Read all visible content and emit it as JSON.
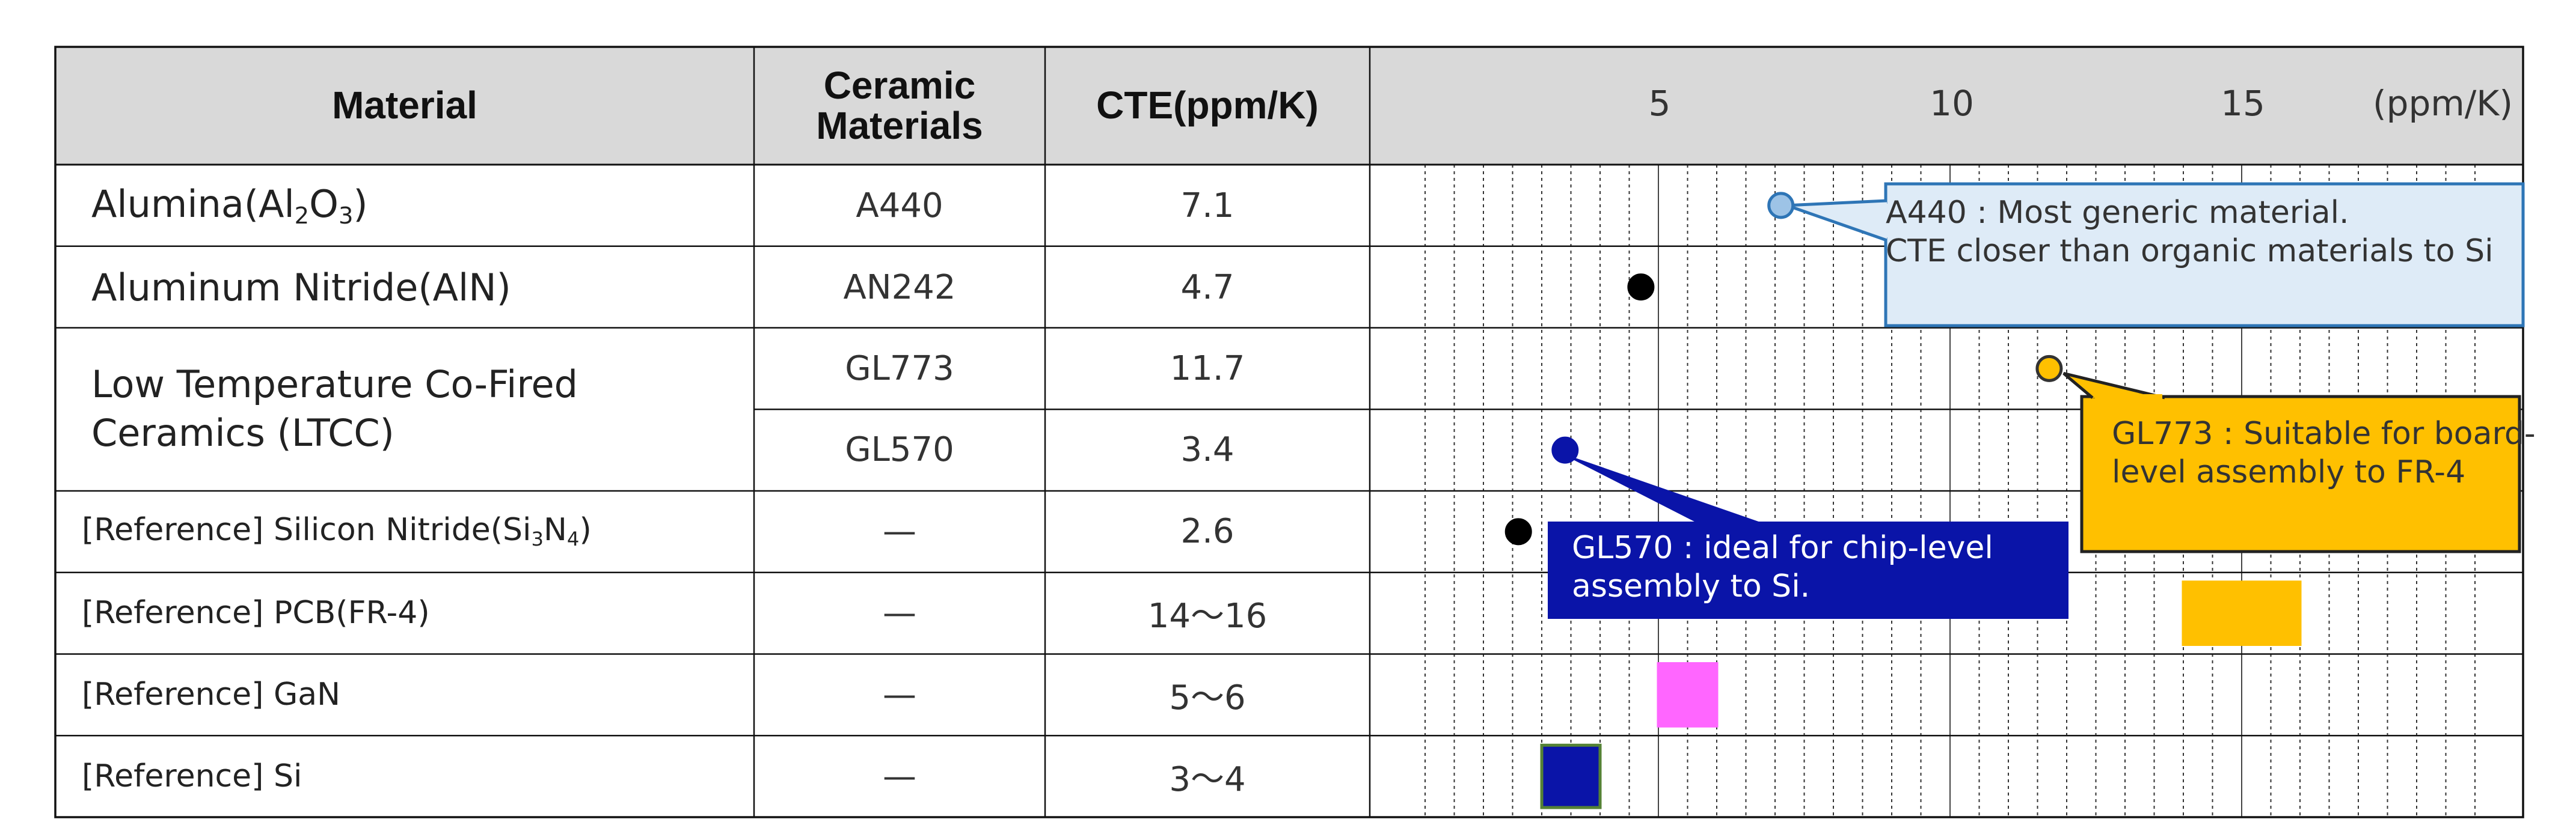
{
  "table": {
    "headers": {
      "material": "Material",
      "ceramic": "Ceramic Materials",
      "cte": "CTE(ppm/K)",
      "axis_unit": "(ppm/K)"
    },
    "rows": [
      {
        "material_pre": "Alumina(Al",
        "sub1": "2",
        "mid": "O",
        "sub2": "3",
        "post": ")",
        "ceramic": "A440",
        "cte": "7.1"
      },
      {
        "material": "Aluminum Nitride(AlN)",
        "ceramic": "AN242",
        "cte": "4.7"
      },
      {
        "material": "Low Temperature Co-Fired Ceramics (LTCC)",
        "ceramic": "GL773",
        "cte": "11.7"
      },
      {
        "ceramic": "GL570",
        "cte": "3.4"
      },
      {
        "material_pre": "[Reference] Silicon Nitride(Si",
        "sub1": "3",
        "mid": "N",
        "sub2": "4",
        "post": ")",
        "ceramic": "—",
        "cte": "2.6"
      },
      {
        "material": "[Reference] PCB(FR-4)",
        "ceramic": "—",
        "cte": "14～16"
      },
      {
        "material": "[Reference] GaN",
        "ceramic": "—",
        "cte": "5～6"
      },
      {
        "material": "[Reference] Si",
        "ceramic": "—",
        "cte": "3～4"
      }
    ]
  },
  "chart_data": {
    "type": "scatter",
    "xlabel": "(ppm/K)",
    "xlim": [
      0,
      20
    ],
    "x_ticks": [
      5,
      10,
      15
    ],
    "grid": true,
    "points": [
      {
        "row": 0,
        "x": 7.1,
        "label": "A440",
        "color": "#9dc3e6",
        "stroke": "#2e75b6"
      },
      {
        "row": 1,
        "x": 4.7,
        "label": "AN242",
        "color": "#000000",
        "stroke": "#000000"
      },
      {
        "row": 2,
        "x": 11.7,
        "label": "GL773",
        "color": "#ffc000",
        "stroke": "#333333"
      },
      {
        "row": 3,
        "x": 3.4,
        "label": "GL570",
        "color": "#0a14a8",
        "stroke": "#0a14a8"
      },
      {
        "row": 4,
        "x": 2.6,
        "label": "Silicon Nitride",
        "color": "#000000",
        "stroke": "#000000"
      }
    ],
    "ranges": [
      {
        "row": 5,
        "x": [
          14,
          16
        ],
        "label": "PCB(FR-4)",
        "color": "#ffc000",
        "stroke": "#ffc000"
      },
      {
        "row": 6,
        "x": [
          5,
          6
        ],
        "label": "GaN",
        "color": "#ff66ff",
        "stroke": "#ff66ff"
      },
      {
        "row": 7,
        "x": [
          3,
          4
        ],
        "label": "Si",
        "color": "#0a14a8",
        "stroke": "#548235"
      }
    ],
    "annotations": [
      {
        "target": "A440",
        "text": "A440 : Most generic material.\nCTE closer than organic materials to Si",
        "fill": "#deebf7",
        "stroke": "#2e75b6"
      },
      {
        "target": "GL773",
        "text": "GL773 : Suitable for board-level assembly to FR-4",
        "fill": "#ffc000",
        "stroke": "#222222"
      },
      {
        "target": "GL570",
        "text": "GL570 : ideal for chip-level assembly to Si.",
        "fill": "#0a14a8",
        "stroke": "#0a14a8"
      }
    ]
  }
}
